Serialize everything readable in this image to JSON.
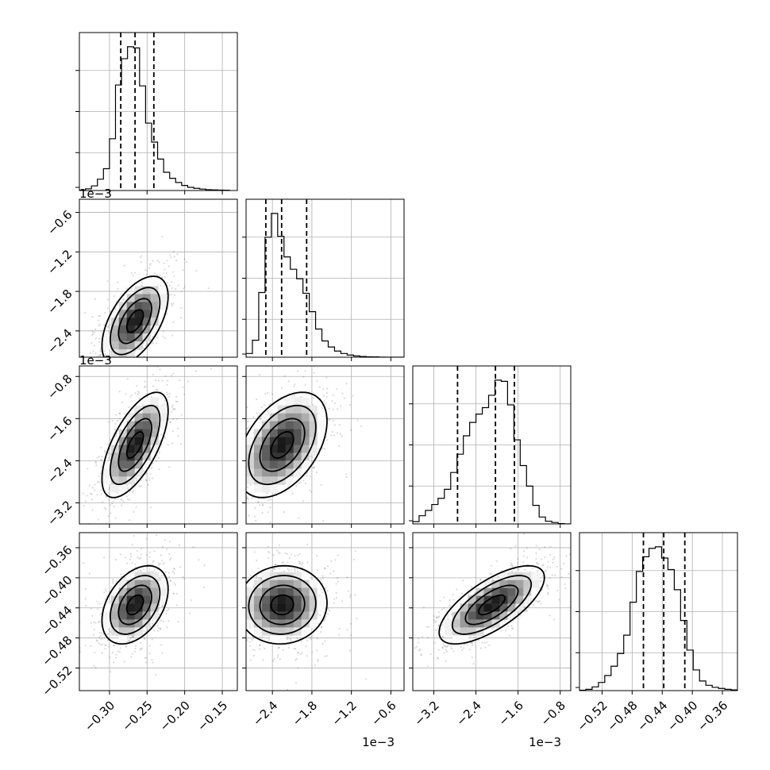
{
  "chart_data": {
    "type": "corner",
    "n_params": 4,
    "grid": true,
    "params": [
      {
        "range": [
          -0.34,
          -0.13
        ],
        "ticks": [
          -0.3,
          -0.25,
          -0.2,
          -0.15
        ],
        "tick_labels": [
          "−0.30",
          "−0.25",
          "−0.20",
          "−0.15"
        ],
        "offset": "",
        "mean": -0.266,
        "sd": 0.022,
        "quantiles": [
          -0.285,
          -0.266,
          -0.241
        ],
        "hist_x": [
          -0.34,
          -0.332,
          -0.324,
          -0.316,
          -0.308,
          -0.3,
          -0.292,
          -0.284,
          -0.276,
          -0.268,
          -0.26,
          -0.252,
          -0.244,
          -0.236,
          -0.228,
          -0.22,
          -0.212,
          -0.204,
          -0.196,
          -0.188,
          -0.18,
          -0.172,
          -0.164,
          -0.156,
          -0.148,
          -0.14
        ],
        "hist_counts": [
          0.3,
          1.2,
          3.2,
          7.9,
          15.2,
          36.0,
          73.4,
          91.7,
          100.0,
          99.2,
          72.8,
          46.9,
          33.7,
          21.9,
          12.7,
          8.5,
          5.6,
          3.5,
          2.2,
          1.5,
          1.0,
          0.6,
          0.4,
          0.3,
          0.2
        ]
      },
      {
        "range": [
          -0.0028,
          -0.0004
        ],
        "ticks": [
          -0.0024,
          -0.0018,
          -0.0012,
          -0.0006
        ],
        "tick_labels": [
          "−2.4",
          "−1.8",
          "−1.2",
          "−0.6"
        ],
        "offset": "1e−3",
        "mean": -0.00225,
        "sd": 0.00034,
        "quantiles": [
          -0.0025,
          -0.00226,
          -0.00188
        ],
        "hist_x": [
          -0.0028,
          -0.002704,
          -0.002608,
          -0.002512,
          -0.002416,
          -0.00232,
          -0.002224,
          -0.002128,
          -0.002032,
          -0.001936,
          -0.00184,
          -0.001744,
          -0.001648,
          -0.001552,
          -0.001456,
          -0.00136,
          -0.001264,
          -0.001168,
          -0.001072,
          -0.000976,
          -0.00088,
          -0.000784,
          -0.000688,
          -0.000592,
          -0.000496,
          -0.0004
        ],
        "hist_counts": [
          2.6,
          11.8,
          45.0,
          83.5,
          100.0,
          84.1,
          69.8,
          61.2,
          54.6,
          44.5,
          31.7,
          19.6,
          11.3,
          7.1,
          4.3,
          2.6,
          1.5,
          0.9,
          0.5,
          0.3,
          0.2,
          0.1,
          0.0,
          0.0,
          0.0
        ]
      },
      {
        "range": [
          -0.0036,
          -0.0006
        ],
        "ticks": [
          -0.0032,
          -0.0024,
          -0.0016,
          -0.0008
        ],
        "tick_labels": [
          "−3.2",
          "−2.4",
          "−1.6",
          "−0.8"
        ],
        "offset": "1e−3",
        "mean": -0.0021,
        "sd": 0.0005,
        "quantiles": [
          -0.00275,
          -0.00203,
          -0.00167
        ],
        "hist_x": [
          -0.0036,
          -0.00348,
          -0.00336,
          -0.00324,
          -0.00312,
          -0.003,
          -0.00288,
          -0.00276,
          -0.00264,
          -0.00252,
          -0.0024,
          -0.00228,
          -0.00216,
          -0.00204,
          -0.00192,
          -0.0018,
          -0.00168,
          -0.00156,
          -0.00144,
          -0.00132,
          -0.0012,
          -0.00108,
          -0.00096,
          -0.00084,
          -0.00072,
          -0.0006
        ],
        "hist_counts": [
          1.6,
          5.7,
          9.4,
          13.5,
          17.8,
          24.1,
          35.8,
          48.5,
          61.3,
          70.6,
          76.4,
          80.9,
          89.5,
          100.0,
          99.2,
          82.8,
          58.5,
          40.6,
          26.3,
          12.9,
          4.8,
          1.9,
          1.0,
          0.2,
          0.0
        ]
      },
      {
        "range": [
          -0.55,
          -0.34
        ],
        "ticks": [
          -0.52,
          -0.48,
          -0.44,
          -0.4,
          -0.36
        ],
        "tick_labels": [
          "−0.52",
          "−0.48",
          "−0.44",
          "−0.40",
          "−0.36"
        ],
        "offset": "",
        "mean": -0.436,
        "sd": 0.026,
        "quantiles": [
          -0.465,
          -0.438,
          -0.41
        ],
        "hist_x": [
          -0.55,
          -0.5416,
          -0.5332,
          -0.5248,
          -0.5164,
          -0.508,
          -0.4996,
          -0.4912,
          -0.4828,
          -0.4744,
          -0.466,
          -0.4576,
          -0.4492,
          -0.4408,
          -0.4324,
          -0.424,
          -0.4156,
          -0.4072,
          -0.3988,
          -0.3904,
          -0.382,
          -0.3736,
          -0.3652,
          -0.3568,
          -0.3484,
          -0.34
        ],
        "hist_counts": [
          0.3,
          0.9,
          2.6,
          5.7,
          10.5,
          17.0,
          25.8,
          38.6,
          61.5,
          82.9,
          93.1,
          99.0,
          100.0,
          92.2,
          84.2,
          70.2,
          48.8,
          28.2,
          14.4,
          6.7,
          3.7,
          2.3,
          1.5,
          0.9,
          0.5
        ]
      }
    ],
    "correlations": [
      [
        0,
        1,
        0.55
      ],
      [
        0,
        2,
        0.65
      ],
      [
        1,
        2,
        0.45
      ],
      [
        0,
        3,
        0.4
      ],
      [
        1,
        3,
        0.05
      ],
      [
        2,
        3,
        0.7
      ]
    ],
    "contour_levels_sigma": [
      0.5,
      1.0,
      1.5,
      2.0
    ],
    "axis_labels": [],
    "title": ""
  }
}
